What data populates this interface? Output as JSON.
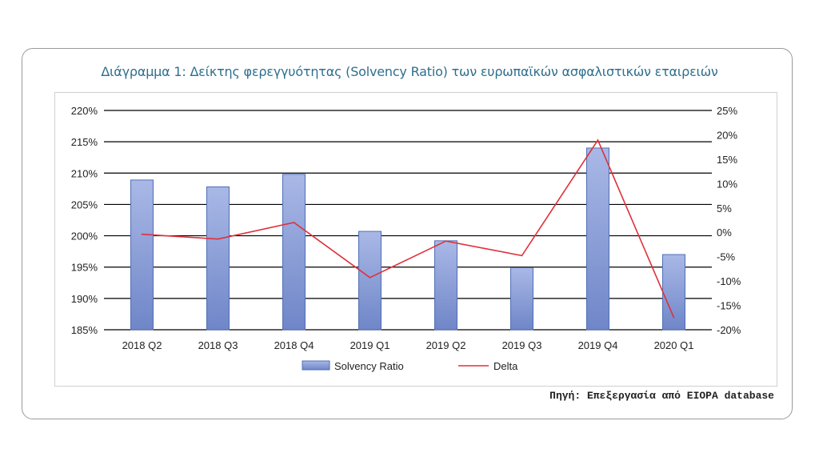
{
  "title": "Διάγραμμα 1: Δείκτης φερεγγυότητας (Solvency Ratio) των ευρωπαϊκών ασφαλιστικών εταιρειών",
  "source": "Πηγή: Επεξεργασία από EIOPA database",
  "chart_data": {
    "type": "bar",
    "title": "Διάγραμμα 1: Δείκτης φερεγγυότητας (Solvency Ratio) των ευρωπαϊκών ασφαλιστικών εταιρειών",
    "categories": [
      "2018 Q2",
      "2018 Q3",
      "2018 Q4",
      "2019 Q1",
      "2019 Q2",
      "2019 Q3",
      "2019 Q4",
      "2020 Q1"
    ],
    "series": [
      {
        "name": "Solvency Ratio",
        "type": "bar",
        "axis": "left",
        "color": "#8ea0d8",
        "values": [
          208.9,
          207.8,
          209.8,
          200.7,
          199.2,
          194.9,
          214.0,
          197.0
        ]
      },
      {
        "name": "Delta",
        "type": "line",
        "axis": "right",
        "color": "#e0303a",
        "values": [
          -0.4,
          -1.4,
          2.0,
          -9.3,
          -1.8,
          -4.8,
          18.9,
          -17.5
        ]
      }
    ],
    "y_left": {
      "min": 185,
      "max": 220,
      "step": 5,
      "format": "percent",
      "tick_labels": [
        "185%",
        "190%",
        "195%",
        "200%",
        "205%",
        "210%",
        "215%",
        "220%"
      ]
    },
    "y_right": {
      "min": -20,
      "max": 25,
      "step": 5,
      "format": "percent",
      "tick_labels": [
        "-20%",
        "-15%",
        "-10%",
        "-5%",
        "0%",
        "5%",
        "10%",
        "15%",
        "20%",
        "25%"
      ]
    },
    "grid": true,
    "legend": {
      "position": "bottom",
      "entries": [
        "Solvency Ratio",
        "Delta"
      ]
    },
    "colors": {
      "bar_fill": "#8ea0d8",
      "bar_stroke": "#4f6fb5",
      "line": "#e0303a",
      "grid": "#000000"
    }
  }
}
